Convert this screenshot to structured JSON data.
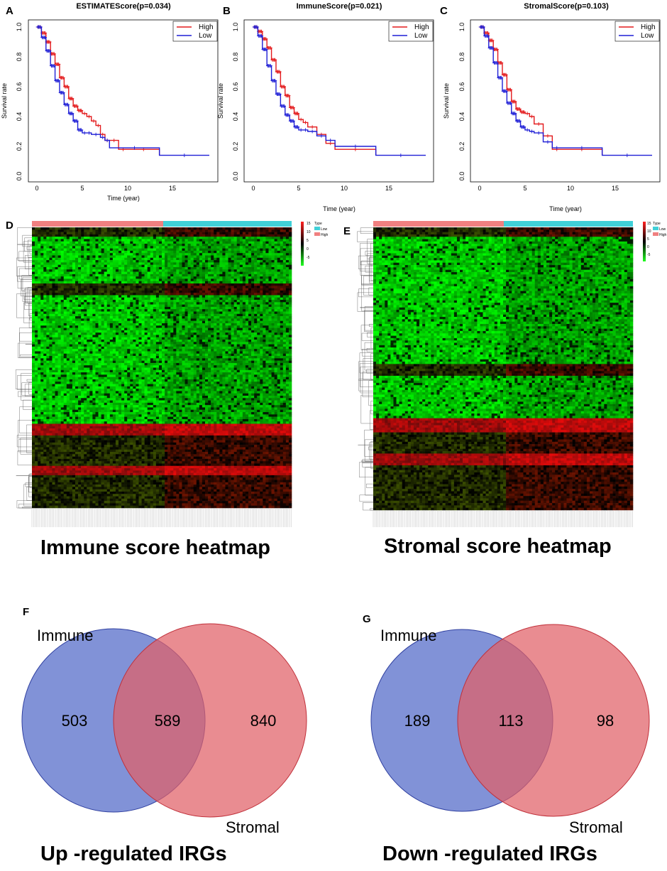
{
  "colors": {
    "high": "#e31a1c",
    "low": "#1f1fd6",
    "group_a": "#f08080",
    "group_b": "#40d0d8",
    "heat_high": "#ff2020",
    "heat_mid": "#000000",
    "heat_low": "#20ff20",
    "venn_left": "#5068c8",
    "venn_right": "#e06066",
    "venn_overlap": "#9a4c6c"
  },
  "chart_data": [
    {
      "panel": "A",
      "type": "line",
      "title": "ESTIMATEScore(p=0.034)",
      "xlabel": "Time (year)",
      "ylabel": "Survival rate",
      "xlim": [
        0,
        19
      ],
      "ylim": [
        0,
        1
      ],
      "xticks": [
        "0",
        "5",
        "10",
        "15"
      ],
      "yticks": [
        "0.0",
        "0.2",
        "0.4",
        "0.6",
        "0.8",
        "1.0"
      ],
      "legend": [
        "High",
        "Low"
      ],
      "series": [
        {
          "name": "High",
          "x": [
            0,
            0.5,
            1,
            1.5,
            2,
            2.5,
            3,
            3.5,
            4,
            4.5,
            5,
            5.5,
            6,
            6.5,
            7,
            7.5,
            8,
            9,
            10,
            13.5
          ],
          "values": [
            1,
            0.96,
            0.9,
            0.82,
            0.75,
            0.66,
            0.6,
            0.52,
            0.47,
            0.44,
            0.42,
            0.4,
            0.37,
            0.34,
            0.28,
            0.24,
            0.24,
            0.18,
            0.18,
            0.14
          ]
        },
        {
          "name": "Low",
          "x": [
            0,
            0.5,
            1,
            1.5,
            2,
            2.5,
            3,
            3.5,
            4,
            4.5,
            5,
            5.5,
            6,
            7,
            7.5,
            8,
            13.5,
            19
          ],
          "values": [
            1,
            0.93,
            0.84,
            0.74,
            0.64,
            0.56,
            0.48,
            0.42,
            0.37,
            0.31,
            0.29,
            0.29,
            0.28,
            0.26,
            0.24,
            0.19,
            0.14,
            0.14
          ]
        }
      ]
    },
    {
      "panel": "B",
      "type": "line",
      "title": "ImmuneScore(p=0.021)",
      "xlabel": "Time (year)",
      "ylabel": "Survival rate",
      "xlim": [
        0,
        19
      ],
      "ylim": [
        0,
        1
      ],
      "xticks": [
        "0",
        "5",
        "10",
        "15"
      ],
      "yticks": [
        "0.0",
        "0.2",
        "0.4",
        "0.6",
        "0.8",
        "1.0"
      ],
      "legend": [
        "High",
        "Low"
      ],
      "series": [
        {
          "name": "High",
          "x": [
            0,
            0.5,
            1,
            1.5,
            2,
            2.5,
            3,
            3.5,
            4,
            4.5,
            5,
            5.5,
            6,
            7,
            8,
            9,
            13.5
          ],
          "values": [
            1,
            0.97,
            0.92,
            0.86,
            0.78,
            0.7,
            0.6,
            0.54,
            0.46,
            0.42,
            0.38,
            0.36,
            0.33,
            0.28,
            0.22,
            0.18,
            0.14
          ]
        },
        {
          "name": "Low",
          "x": [
            0,
            0.5,
            1,
            1.5,
            2,
            2.5,
            3,
            3.5,
            4,
            4.5,
            5,
            5.5,
            6,
            7,
            8,
            9,
            13.5,
            19
          ],
          "values": [
            1,
            0.94,
            0.85,
            0.74,
            0.64,
            0.55,
            0.47,
            0.41,
            0.37,
            0.33,
            0.31,
            0.31,
            0.3,
            0.27,
            0.24,
            0.2,
            0.14,
            0.14
          ]
        }
      ]
    },
    {
      "panel": "C",
      "type": "line",
      "title": "StromalScore(p=0.103)",
      "xlabel": "Time (year)",
      "ylabel": "Survival rate",
      "xlim": [
        0,
        19
      ],
      "ylim": [
        0,
        1
      ],
      "xticks": [
        "0",
        "5",
        "10",
        "15"
      ],
      "yticks": [
        "0.0",
        "0.2",
        "0.4",
        "0.6",
        "0.8",
        "1.0"
      ],
      "legend": [
        "High",
        "Low"
      ],
      "series": [
        {
          "name": "High",
          "x": [
            0,
            0.5,
            1,
            1.5,
            2,
            2.5,
            3,
            3.5,
            4,
            4.5,
            5,
            5.5,
            6,
            7,
            8,
            9,
            13.5
          ],
          "values": [
            1,
            0.96,
            0.91,
            0.85,
            0.76,
            0.68,
            0.58,
            0.5,
            0.45,
            0.43,
            0.42,
            0.4,
            0.35,
            0.27,
            0.18,
            0.18,
            0.14
          ]
        },
        {
          "name": "Low",
          "x": [
            0,
            0.5,
            1,
            1.5,
            2,
            2.5,
            3,
            3.5,
            4,
            4.5,
            5,
            5.5,
            6,
            7,
            8,
            9,
            13.5,
            19
          ],
          "values": [
            1,
            0.94,
            0.86,
            0.76,
            0.66,
            0.57,
            0.49,
            0.42,
            0.37,
            0.33,
            0.31,
            0.3,
            0.29,
            0.23,
            0.19,
            0.19,
            0.14,
            0.14
          ]
        }
      ]
    },
    {
      "panel": "D",
      "type": "heatmap",
      "caption": "Immune score heatmap",
      "legend_title": "Type",
      "color_scale": [
        "15",
        "10",
        "5",
        "0",
        "-5"
      ],
      "groups": [
        "High",
        "Low"
      ]
    },
    {
      "panel": "E",
      "type": "heatmap",
      "caption": "Stromal score heatmap",
      "legend_title": "Type",
      "color_scale": [
        "15",
        "10",
        "5",
        "0",
        "-5"
      ],
      "groups": [
        "High",
        "Low"
      ]
    },
    {
      "panel": "F",
      "type": "venn",
      "caption": "Up -regulated IRGs",
      "sets": [
        "Immune",
        "Stromal"
      ],
      "only_left": 503,
      "overlap": 589,
      "only_right": 840
    },
    {
      "panel": "G",
      "type": "venn",
      "caption": "Down -regulated IRGs",
      "sets": [
        "Immune",
        "Stromal"
      ],
      "only_left": 189,
      "overlap": 113,
      "only_right": 98
    }
  ]
}
